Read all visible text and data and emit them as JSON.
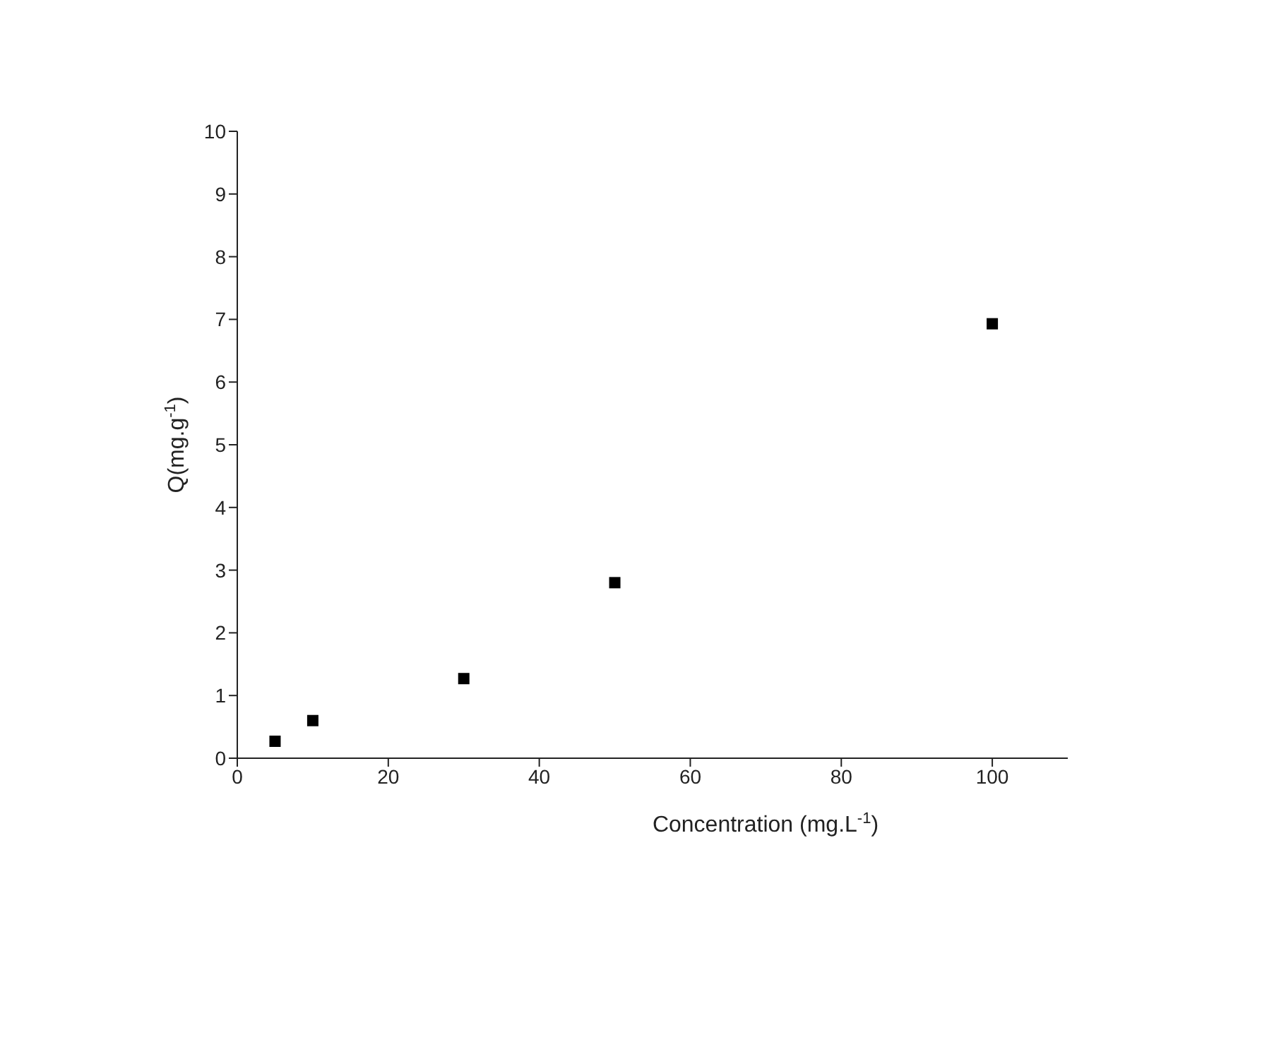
{
  "chart_data": {
    "type": "scatter",
    "xlabel": "Concentration (mg.L$^{-1}$)",
    "ylabel": "Q(mg.g$^{-1}$)",
    "x": [
      5,
      10,
      30,
      50,
      100
    ],
    "series": [
      {
        "color": "#000000",
        "values": [
          0.27,
          0.6,
          1.27,
          2.8,
          6.93
        ]
      }
    ],
    "xlim": [
      0,
      110
    ],
    "xticks": [
      0,
      20,
      40,
      60,
      80,
      100
    ],
    "ylim": [
      0,
      10
    ],
    "yticks": [
      0,
      1,
      2,
      3,
      4,
      5,
      6,
      7,
      8,
      9,
      10
    ],
    "marker": "square",
    "grid": false
  }
}
